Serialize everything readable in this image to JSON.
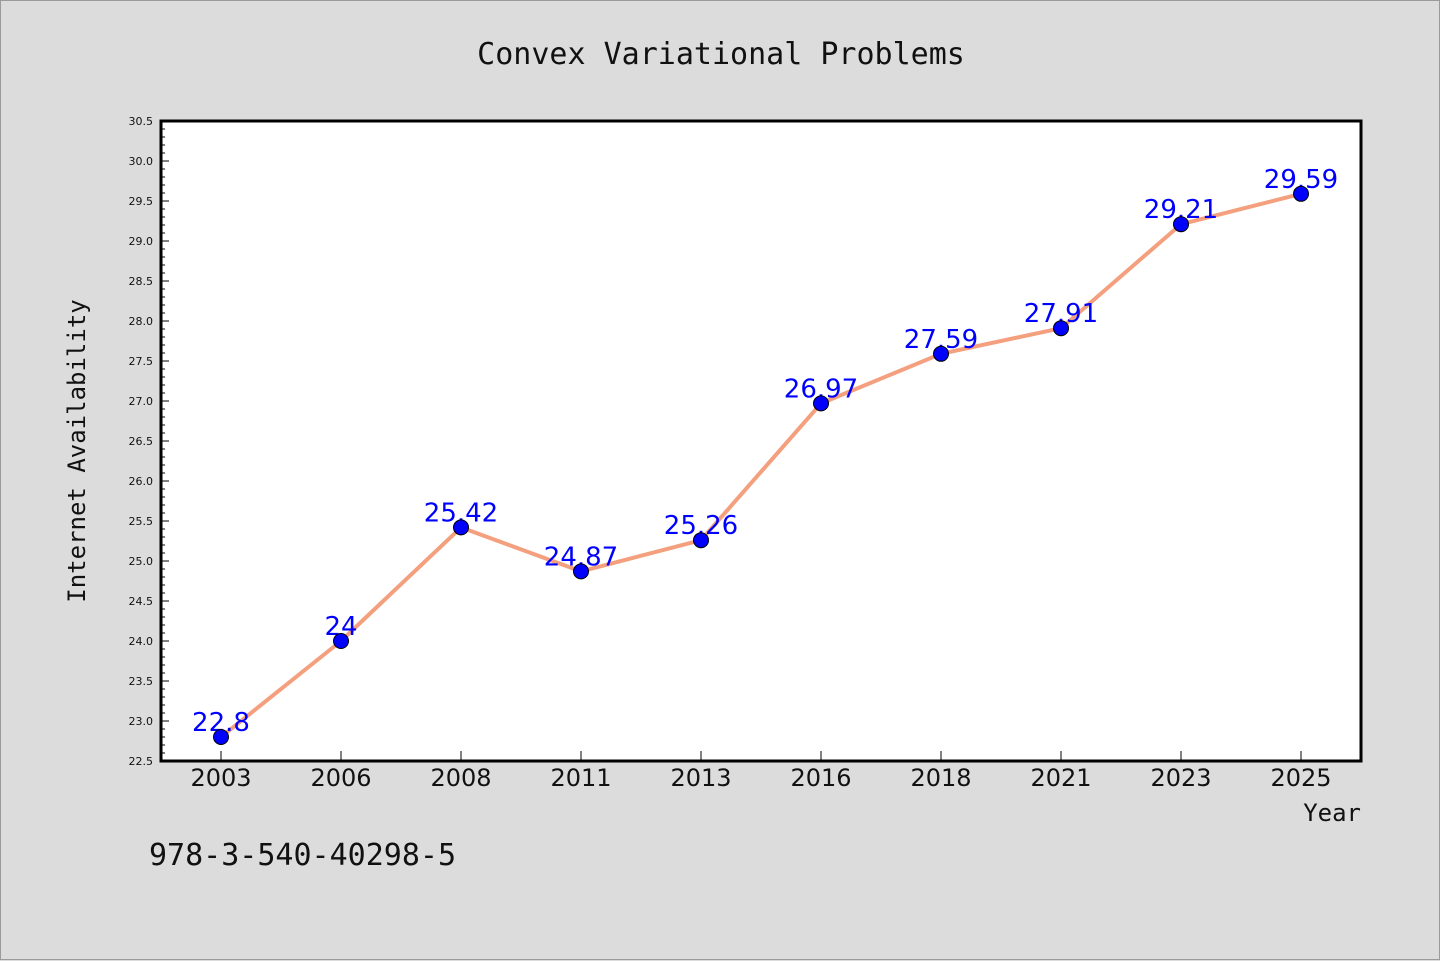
{
  "chart_data": {
    "type": "line",
    "title": "Convex Variational Problems",
    "xlabel": "Year",
    "ylabel": "Internet Availability",
    "categories": [
      "2003",
      "2006",
      "2008",
      "2011",
      "2013",
      "2016",
      "2018",
      "2021",
      "2023",
      "2025"
    ],
    "values": [
      22.8,
      24,
      25.42,
      24.87,
      25.26,
      26.97,
      27.59,
      27.91,
      29.21,
      29.59
    ],
    "data_labels": [
      "22.8",
      "24",
      "25.42",
      "24.87",
      "25.26",
      "26.97",
      "27.59",
      "27.91",
      "29.21",
      "29.59"
    ],
    "ylim": [
      22.5,
      30.5
    ],
    "yticks": [
      "22.5",
      "23.0",
      "23.5",
      "24.0",
      "24.5",
      "25.0",
      "25.5",
      "26.0",
      "26.5",
      "27.0",
      "27.5",
      "28.0",
      "28.5",
      "29.0",
      "29.5",
      "30.0",
      "30.5"
    ],
    "grid": false,
    "legend": "none",
    "colors": {
      "line": "#f4a07e",
      "marker": "#0000ff",
      "data_label": "#0000ff",
      "background": "#dcdcdc",
      "plot_background": "#ffffff"
    }
  },
  "footer": {
    "isbn": "978-3-540-40298-5"
  }
}
